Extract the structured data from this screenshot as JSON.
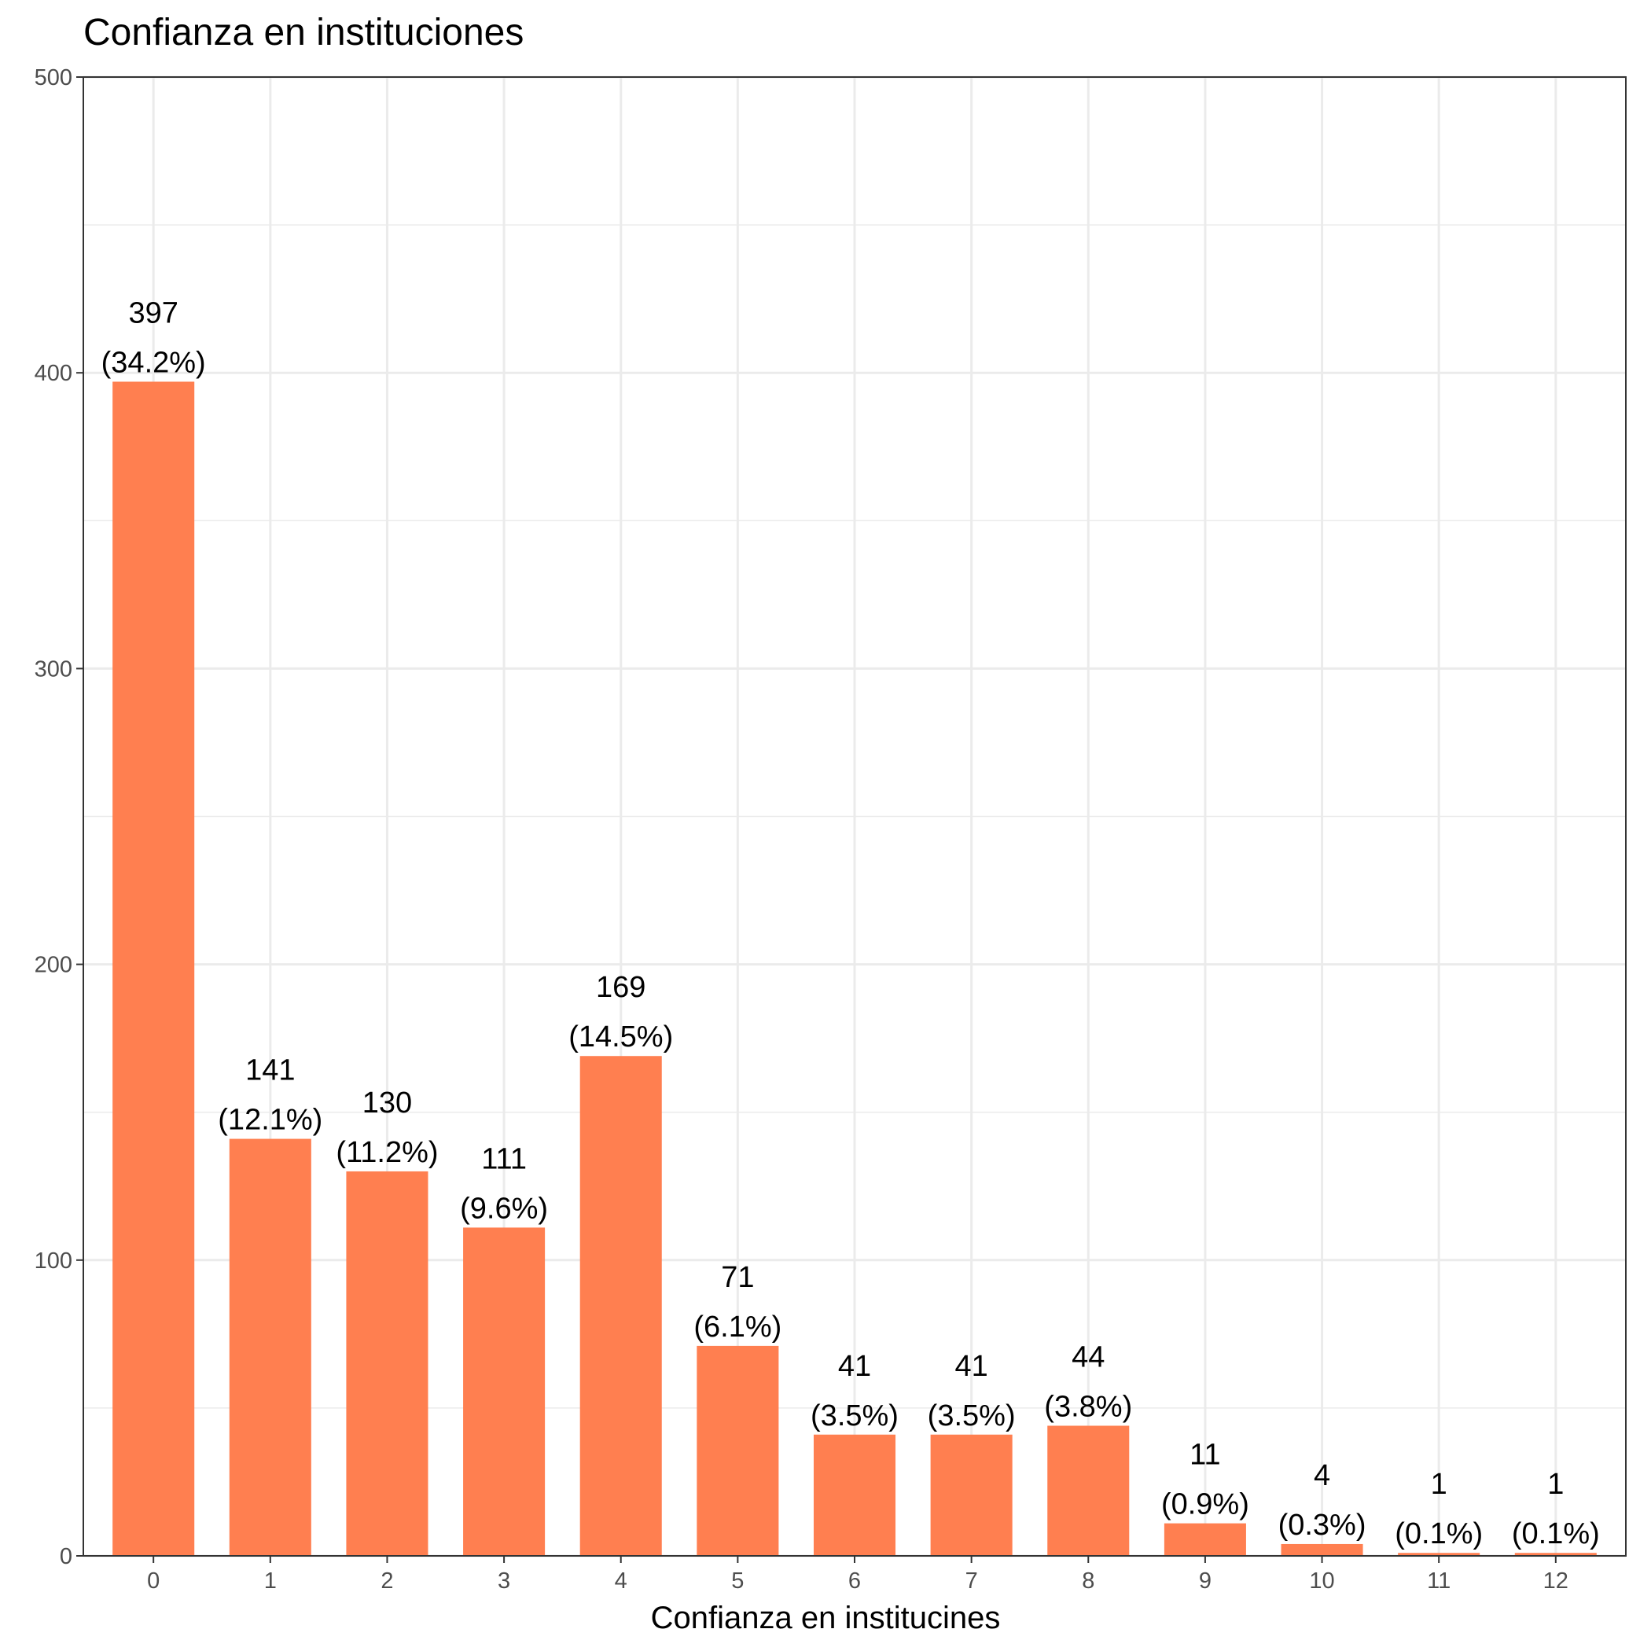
{
  "chart_data": {
    "type": "bar",
    "title": "Confianza en instituciones",
    "xlabel": "Confianza en institucines",
    "ylabel": "",
    "categories": [
      "0",
      "1",
      "2",
      "3",
      "4",
      "5",
      "6",
      "7",
      "8",
      "9",
      "10",
      "11",
      "12"
    ],
    "values": [
      397,
      141,
      130,
      111,
      169,
      71,
      41,
      41,
      44,
      11,
      4,
      1,
      1
    ],
    "labels": [
      [
        "397",
        "(34.2%)"
      ],
      [
        "141",
        "(12.1%)"
      ],
      [
        "130",
        "(11.2%)"
      ],
      [
        "111",
        "(9.6%)"
      ],
      [
        "169",
        "(14.5%)"
      ],
      [
        "71",
        "(6.1%)"
      ],
      [
        "41",
        "(3.5%)"
      ],
      [
        "41",
        "(3.5%)"
      ],
      [
        "44",
        "(3.8%)"
      ],
      [
        "11",
        "(0.9%)"
      ],
      [
        "4",
        "(0.3%)"
      ],
      [
        "1",
        "(0.1%)"
      ],
      [
        "1",
        "(0.1%)"
      ]
    ],
    "ylim": [
      0,
      500
    ],
    "yticks": [
      0,
      100,
      200,
      300,
      400,
      500
    ],
    "grid": true,
    "bar_color": "#FF7F50"
  }
}
